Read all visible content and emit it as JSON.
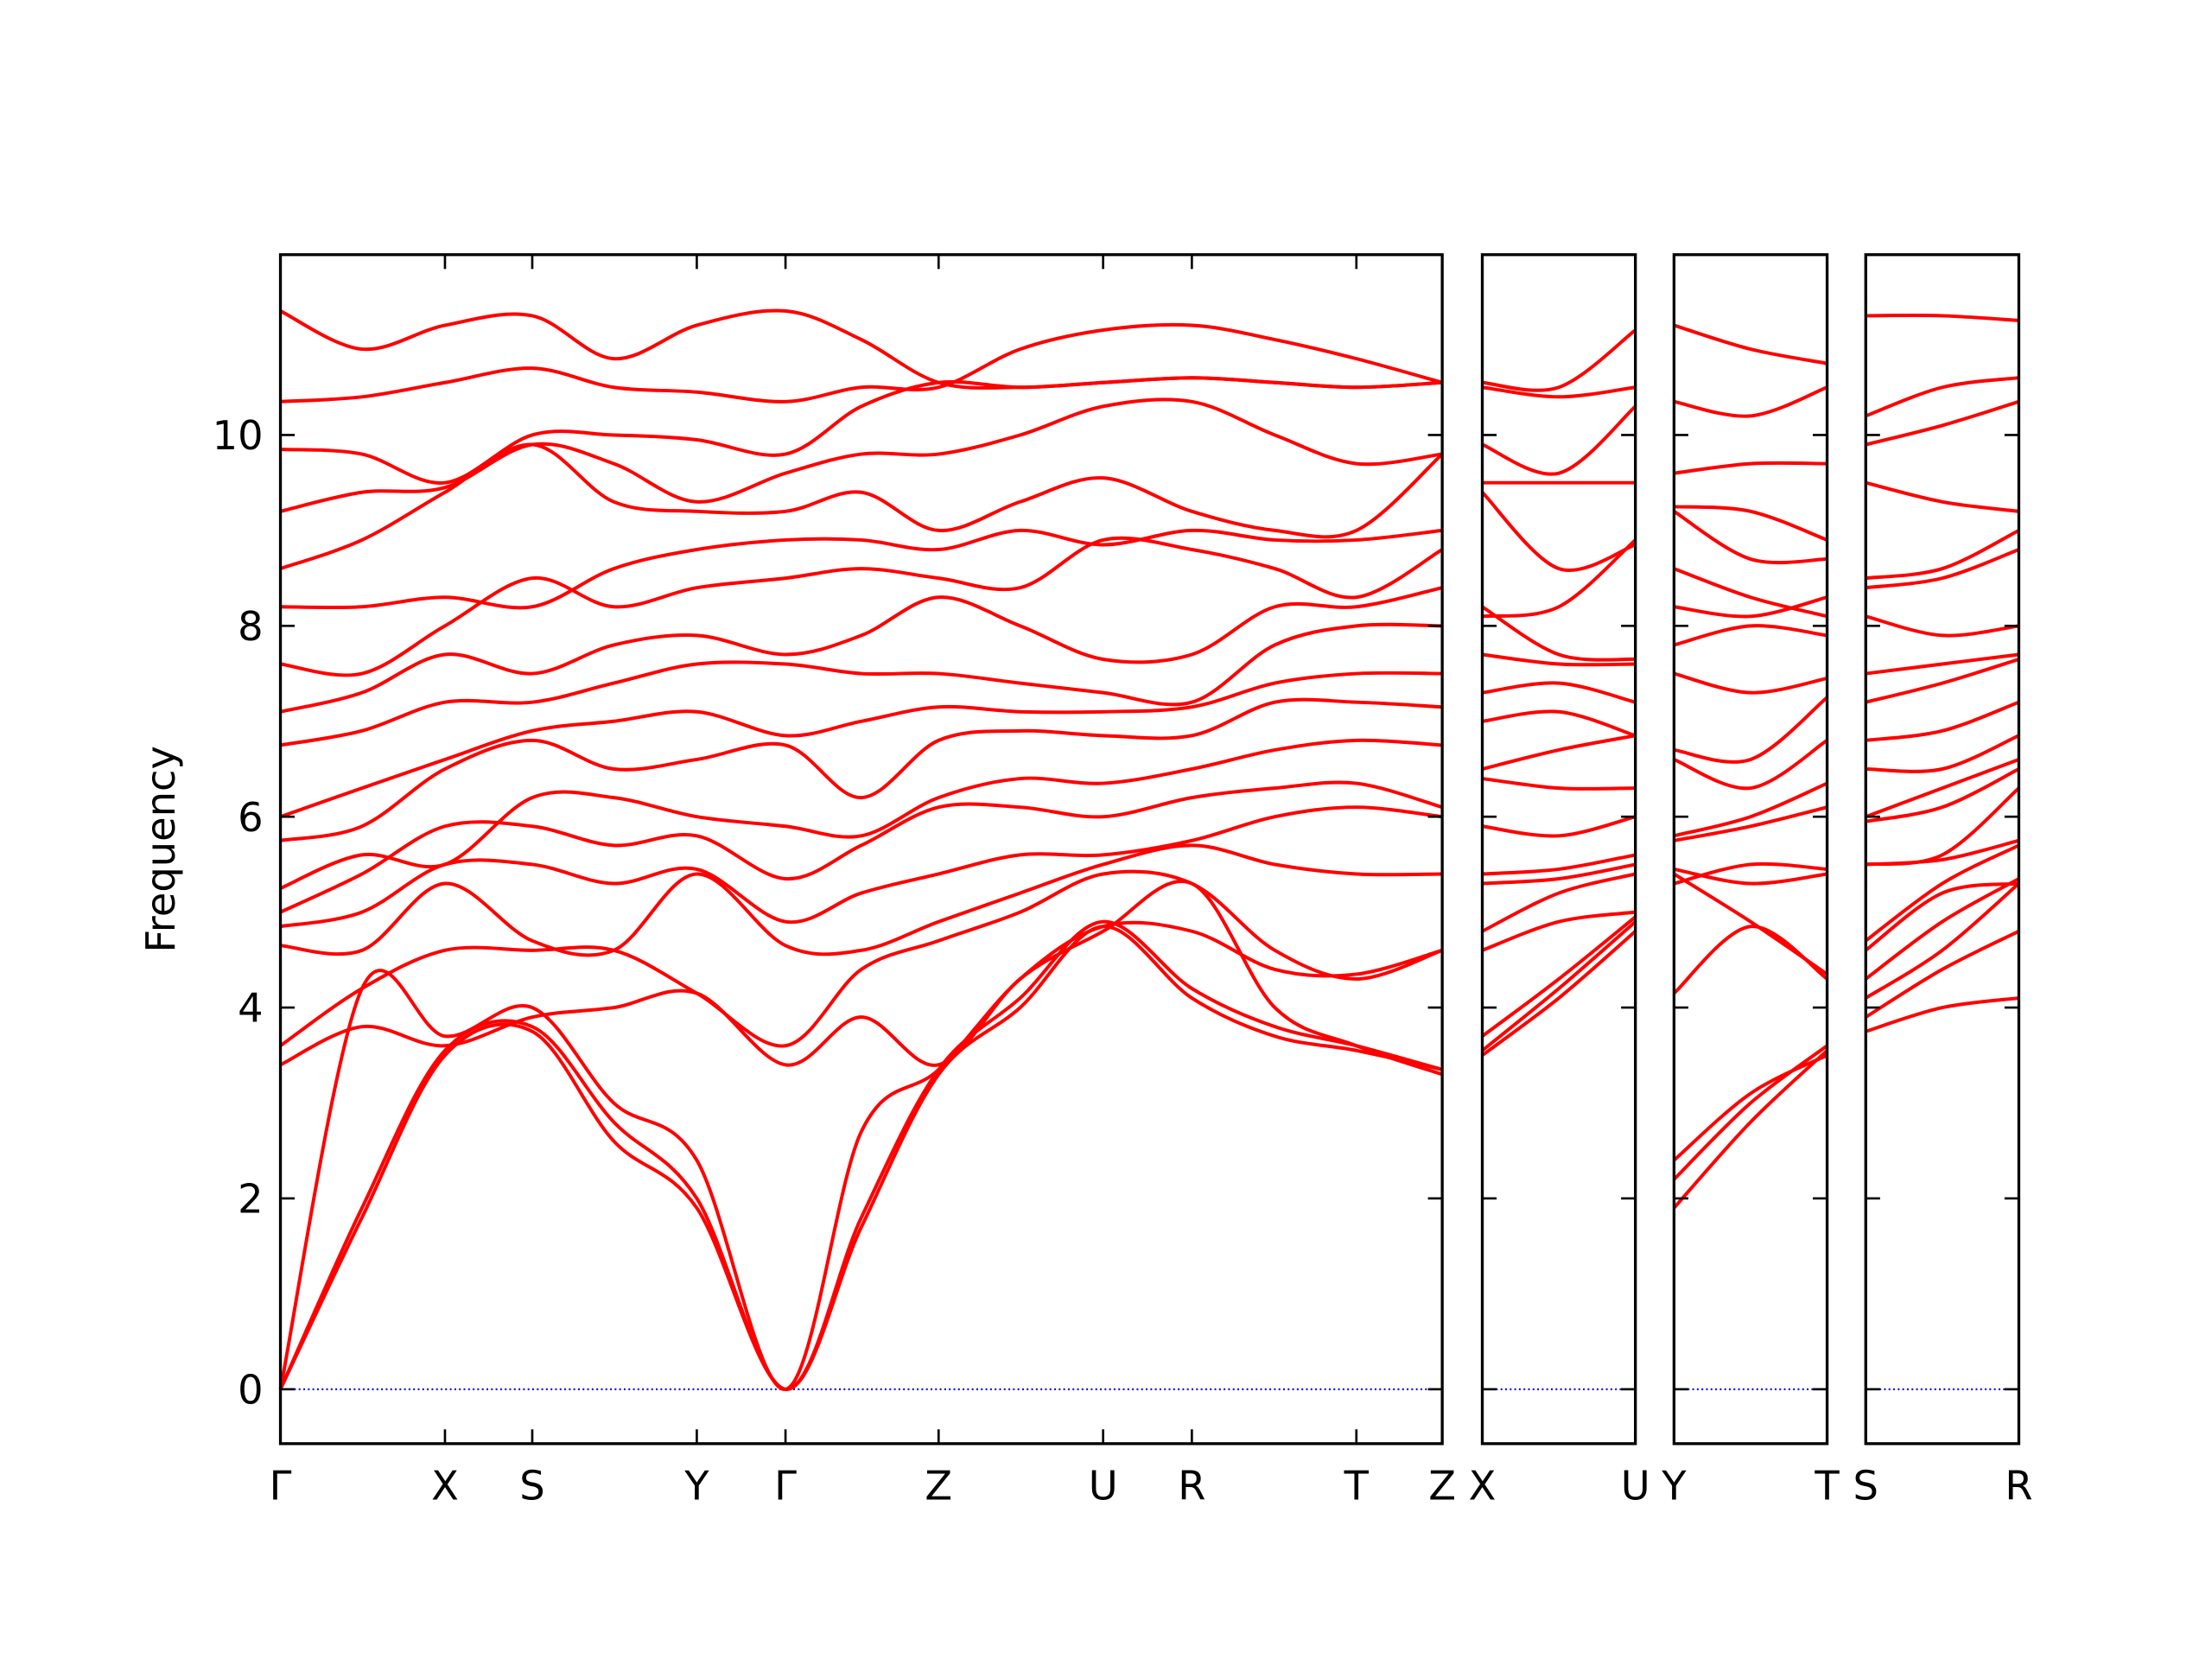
{
  "chart_data": [
    {
      "type": "line",
      "ylabel": "Frequency",
      "color": "#ff0000",
      "ytick_labels": true,
      "zero_line": {
        "value": 0,
        "color": "#0000ff",
        "dash": "dotted"
      },
      "xlim": [
        0,
        8.12
      ],
      "ylim": [
        -0.57,
        11.89
      ],
      "yticks": [
        0,
        2,
        4,
        6,
        8,
        10
      ],
      "xticks": [
        {
          "value": 0,
          "label": "Γ"
        },
        {
          "value": 1.15,
          "label": "X"
        },
        {
          "value": 1.76,
          "label": "S"
        },
        {
          "value": 2.91,
          "label": "Y"
        },
        {
          "value": 3.53,
          "label": "Γ"
        },
        {
          "value": 4.6,
          "label": "Z"
        },
        {
          "value": 5.75,
          "label": "U"
        },
        {
          "value": 6.37,
          "label": "R"
        },
        {
          "value": 7.52,
          "label": "T"
        },
        {
          "value": 8.12,
          "label": "Z"
        }
      ],
      "x": [
        0,
        0.57,
        1.15,
        1.76,
        2.33,
        2.91,
        3.53,
        4.06,
        4.6,
        5.17,
        5.75,
        6.37,
        6.95,
        7.52,
        8.12
      ],
      "series": [
        {
          "values": [
            0,
            1.8,
            3.5,
            3.75,
            2.6,
            1.9,
            0,
            1.7,
            3.3,
            4.0,
            4.85,
            4.1,
            3.7,
            3.55,
            3.35
          ]
        },
        {
          "values": [
            0,
            1.9,
            3.55,
            3.8,
            2.8,
            2.0,
            0,
            1.8,
            3.35,
            4.1,
            4.9,
            4.2,
            3.8,
            3.6,
            3.35
          ]
        },
        {
          "values": [
            0,
            4.2,
            3.7,
            4.0,
            3.0,
            2.4,
            0,
            2.7,
            3.35,
            4.3,
            4.85,
            4.8,
            4.4,
            4.35,
            4.6
          ]
        },
        {
          "values": [
            3.4,
            3.8,
            3.6,
            3.9,
            4.0,
            4.15,
            3.4,
            3.9,
            3.4,
            4.3,
            4.8,
            5.3,
            4.0,
            3.6,
            3.3
          ]
        },
        {
          "values": [
            3.6,
            4.2,
            4.6,
            4.6,
            4.6,
            4.15,
            3.6,
            4.4,
            4.7,
            5.0,
            5.4,
            5.3,
            4.6,
            4.3,
            4.6
          ]
        },
        {
          "values": [
            4.65,
            4.6,
            5.3,
            4.7,
            4.6,
            5.4,
            4.65,
            4.6,
            4.9,
            5.2,
            5.5,
            5.7,
            5.5,
            5.4,
            5.4
          ]
        },
        {
          "values": [
            4.85,
            5.0,
            5.5,
            5.5,
            5.3,
            5.45,
            4.9,
            5.2,
            5.4,
            5.6,
            5.6,
            5.75,
            6.0,
            6.1,
            6.0
          ]
        },
        {
          "values": [
            5.0,
            5.4,
            5.9,
            5.9,
            5.7,
            5.8,
            5.35,
            5.7,
            6.1,
            6.1,
            6.0,
            6.2,
            6.3,
            6.35,
            6.1
          ]
        },
        {
          "values": [
            5.25,
            5.6,
            5.5,
            6.2,
            6.2,
            6.0,
            5.9,
            5.8,
            6.2,
            6.4,
            6.35,
            6.5,
            6.7,
            6.8,
            6.75
          ]
        },
        {
          "values": [
            5.75,
            5.9,
            6.5,
            6.8,
            6.5,
            6.6,
            6.75,
            6.2,
            6.8,
            6.9,
            6.85,
            6.85,
            7.2,
            7.2,
            7.15
          ]
        },
        {
          "values": [
            6.0,
            6.3,
            6.6,
            6.9,
            7.0,
            7.1,
            6.85,
            7.0,
            7.15,
            7.1,
            7.1,
            7.15,
            7.4,
            7.5,
            7.5
          ]
        },
        {
          "values": [
            6.75,
            6.9,
            7.2,
            7.2,
            7.4,
            7.6,
            7.6,
            7.5,
            7.5,
            7.4,
            7.3,
            7.2,
            7.8,
            8.0,
            8.0
          ]
        },
        {
          "values": [
            7.1,
            7.3,
            7.7,
            7.5,
            7.8,
            7.9,
            7.7,
            7.9,
            8.3,
            8.0,
            7.65,
            7.7,
            8.2,
            8.2,
            8.4
          ]
        },
        {
          "values": [
            7.6,
            7.5,
            8.0,
            8.5,
            8.2,
            8.4,
            8.5,
            8.6,
            8.5,
            8.4,
            8.9,
            8.8,
            8.6,
            8.3,
            8.8
          ]
        },
        {
          "values": [
            8.2,
            8.2,
            8.3,
            8.2,
            8.6,
            8.8,
            8.9,
            8.9,
            8.8,
            9.0,
            8.85,
            9.0,
            8.9,
            8.9,
            9.0
          ]
        },
        {
          "values": [
            8.6,
            8.9,
            9.4,
            9.9,
            9.3,
            9.2,
            9.2,
            9.4,
            9.0,
            9.3,
            9.55,
            9.2,
            9.0,
            9.0,
            9.8
          ]
        },
        {
          "values": [
            9.2,
            9.4,
            9.45,
            9.9,
            9.7,
            9.3,
            9.6,
            9.8,
            9.8,
            10.0,
            10.3,
            10.35,
            10.0,
            9.7,
            9.8
          ]
        },
        {
          "values": [
            9.85,
            9.8,
            9.5,
            10.0,
            10.0,
            9.95,
            9.8,
            10.3,
            10.55,
            10.5,
            10.55,
            10.6,
            10.55,
            10.5,
            10.55
          ]
        },
        {
          "values": [
            10.35,
            10.4,
            10.55,
            10.7,
            10.5,
            10.45,
            10.35,
            10.5,
            10.5,
            10.9,
            11.1,
            11.15,
            11.0,
            10.8,
            10.55
          ]
        },
        {
          "values": [
            11.3,
            10.9,
            11.15,
            11.25,
            10.8,
            11.15,
            11.3,
            11.0,
            10.55,
            10.5,
            10.55,
            10.6,
            10.55,
            10.5,
            10.55
          ]
        }
      ]
    },
    {
      "type": "line",
      "color": "#ff0000",
      "ytick_labels": false,
      "zero_line": {
        "value": 0,
        "color": "#0000ff",
        "dash": "dotted"
      },
      "xlim": [
        0,
        1.07
      ],
      "ylim": [
        -0.57,
        11.89
      ],
      "yticks": [
        0,
        2,
        4,
        6,
        8,
        10
      ],
      "xticks": [
        {
          "value": 0,
          "label": "X"
        },
        {
          "value": 1.07,
          "label": "U"
        }
      ],
      "x": [
        0,
        0.535,
        1.07
      ],
      "series": [
        {
          "values": [
            3.5,
            4.1,
            4.8
          ]
        },
        {
          "values": [
            3.55,
            4.2,
            4.9
          ]
        },
        {
          "values": [
            3.7,
            4.3,
            4.95
          ]
        },
        {
          "values": [
            4.6,
            4.9,
            5.0
          ]
        },
        {
          "values": [
            4.8,
            5.2,
            5.4
          ]
        },
        {
          "values": [
            5.3,
            5.35,
            5.5
          ]
        },
        {
          "values": [
            5.4,
            5.45,
            5.6
          ]
        },
        {
          "values": [
            5.9,
            5.8,
            6.0
          ]
        },
        {
          "values": [
            6.4,
            6.3,
            6.3
          ]
        },
        {
          "values": [
            6.5,
            6.7,
            6.85
          ]
        },
        {
          "values": [
            7.0,
            7.1,
            6.85
          ]
        },
        {
          "values": [
            7.3,
            7.4,
            7.2
          ]
        },
        {
          "values": [
            7.7,
            7.6,
            7.6
          ]
        },
        {
          "values": [
            8.2,
            7.7,
            7.65
          ]
        },
        {
          "values": [
            8.1,
            8.2,
            8.9
          ]
        },
        {
          "values": [
            9.4,
            8.6,
            8.85
          ]
        },
        {
          "values": [
            9.5,
            9.5,
            9.5
          ]
        },
        {
          "values": [
            9.9,
            9.6,
            10.3
          ]
        },
        {
          "values": [
            10.5,
            10.4,
            10.5
          ]
        },
        {
          "values": [
            10.55,
            10.5,
            11.1
          ]
        }
      ]
    },
    {
      "type": "line",
      "color": "#ff0000",
      "ytick_labels": false,
      "zero_line": {
        "value": 0,
        "color": "#0000ff",
        "dash": "dotted"
      },
      "xlim": [
        0,
        1.07
      ],
      "ylim": [
        -0.57,
        11.89
      ],
      "yticks": [
        0,
        2,
        4,
        6,
        8,
        10
      ],
      "xticks": [
        {
          "value": 0,
          "label": "Y"
        },
        {
          "value": 1.07,
          "label": "T"
        }
      ],
      "x": [
        0,
        0.535,
        1.07
      ],
      "series": [
        {
          "values": [
            1.9,
            2.8,
            3.55
          ]
        },
        {
          "values": [
            2.2,
            3.0,
            3.6
          ]
        },
        {
          "values": [
            2.4,
            3.1,
            3.5
          ]
        },
        {
          "values": [
            4.15,
            4.85,
            4.3
          ]
        },
        {
          "values": [
            5.4,
            4.9,
            4.35
          ]
        },
        {
          "values": [
            5.45,
            5.3,
            5.4
          ]
        },
        {
          "values": [
            5.3,
            5.5,
            5.45
          ]
        },
        {
          "values": [
            5.75,
            5.9,
            6.1
          ]
        },
        {
          "values": [
            5.8,
            6.0,
            6.35
          ]
        },
        {
          "values": [
            6.6,
            6.3,
            6.8
          ]
        },
        {
          "values": [
            6.7,
            6.6,
            7.25
          ]
        },
        {
          "values": [
            7.5,
            7.3,
            7.45
          ]
        },
        {
          "values": [
            7.8,
            8.0,
            7.9
          ]
        },
        {
          "values": [
            8.2,
            8.1,
            8.3
          ]
        },
        {
          "values": [
            8.6,
            8.3,
            8.1
          ]
        },
        {
          "values": [
            9.2,
            8.7,
            8.7
          ]
        },
        {
          "values": [
            9.25,
            9.2,
            8.9
          ]
        },
        {
          "values": [
            9.6,
            9.7,
            9.7
          ]
        },
        {
          "values": [
            10.35,
            10.2,
            10.5
          ]
        },
        {
          "values": [
            11.15,
            10.9,
            10.75
          ]
        }
      ]
    },
    {
      "type": "line",
      "color": "#ff0000",
      "ytick_labels": false,
      "zero_line": {
        "value": 0,
        "color": "#0000ff",
        "dash": "dotted"
      },
      "xlim": [
        0,
        1.07
      ],
      "ylim": [
        -0.57,
        11.89
      ],
      "yticks": [
        0,
        2,
        4,
        6,
        8,
        10
      ],
      "xticks": [
        {
          "value": 0,
          "label": "S"
        },
        {
          "value": 1.07,
          "label": "R"
        }
      ],
      "x": [
        0,
        0.535,
        1.07
      ],
      "series": [
        {
          "values": [
            3.75,
            4.0,
            4.1
          ]
        },
        {
          "values": [
            3.9,
            4.4,
            4.8
          ]
        },
        {
          "values": [
            4.1,
            4.6,
            5.3
          ]
        },
        {
          "values": [
            4.3,
            4.9,
            5.35
          ]
        },
        {
          "values": [
            4.6,
            5.2,
            5.3
          ]
        },
        {
          "values": [
            4.7,
            5.3,
            5.7
          ]
        },
        {
          "values": [
            5.5,
            5.55,
            5.75
          ]
        },
        {
          "values": [
            5.5,
            5.6,
            6.3
          ]
        },
        {
          "values": [
            5.95,
            6.1,
            6.5
          ]
        },
        {
          "values": [
            6.0,
            6.3,
            6.6
          ]
        },
        {
          "values": [
            6.5,
            6.5,
            6.85
          ]
        },
        {
          "values": [
            6.8,
            6.9,
            7.2
          ]
        },
        {
          "values": [
            7.2,
            7.4,
            7.65
          ]
        },
        {
          "values": [
            7.5,
            7.6,
            7.7
          ]
        },
        {
          "values": [
            8.1,
            7.9,
            8.0
          ]
        },
        {
          "values": [
            8.4,
            8.5,
            8.8
          ]
        },
        {
          "values": [
            8.5,
            8.6,
            9.0
          ]
        },
        {
          "values": [
            9.5,
            9.3,
            9.2
          ]
        },
        {
          "values": [
            9.9,
            10.1,
            10.35
          ]
        },
        {
          "values": [
            10.2,
            10.5,
            10.6
          ]
        },
        {
          "values": [
            11.25,
            11.25,
            11.2
          ]
        }
      ]
    }
  ]
}
